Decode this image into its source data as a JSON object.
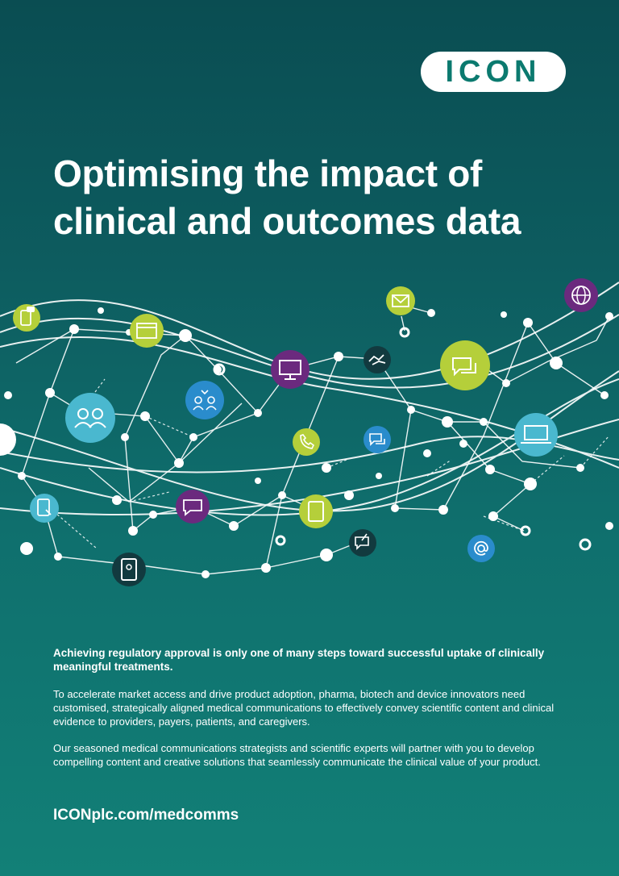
{
  "brand": {
    "logo_text": "ICON",
    "accent": "#0b7a6f"
  },
  "headline": {
    "line1": "Optimising the impact of",
    "line2": "clinical and outcomes data"
  },
  "body": {
    "lead": "Achieving regulatory approval is only one of many steps toward successful uptake of clinically meaningful treatments.",
    "paragraph1": "To accelerate market access and drive product adoption, pharma, biotech and device innovators need customised, strategically aligned medical communications to effectively convey scientific content and clinical evidence to providers, payers, patients, and caregivers.",
    "paragraph2": "Our seasoned medical communications strategists and scientific experts will partner with you to develop compelling content and creative solutions that seamlessly communicate the clinical value of your product."
  },
  "footer": {
    "url": "ICONplc.com/medcomms"
  },
  "colors": {
    "lime": "#b5cf3a",
    "purple": "#6b2a7e",
    "blue": "#2a8ccc",
    "sky": "#4ab8cf",
    "dark": "#123a3f"
  },
  "network_icons": [
    "phone-message-icon",
    "browser-window-icon",
    "email-icon",
    "globe-icon",
    "handshake-icon",
    "monitor-icon",
    "chat-bubbles-icon",
    "team-icon",
    "audience-icon",
    "phone-call-icon",
    "speech-bubbles-icon",
    "laptop-icon",
    "tablet-touch-icon",
    "chat-icon",
    "tablet-icon",
    "pen-chat-icon",
    "mobile-profile-icon",
    "at-sign-icon"
  ]
}
